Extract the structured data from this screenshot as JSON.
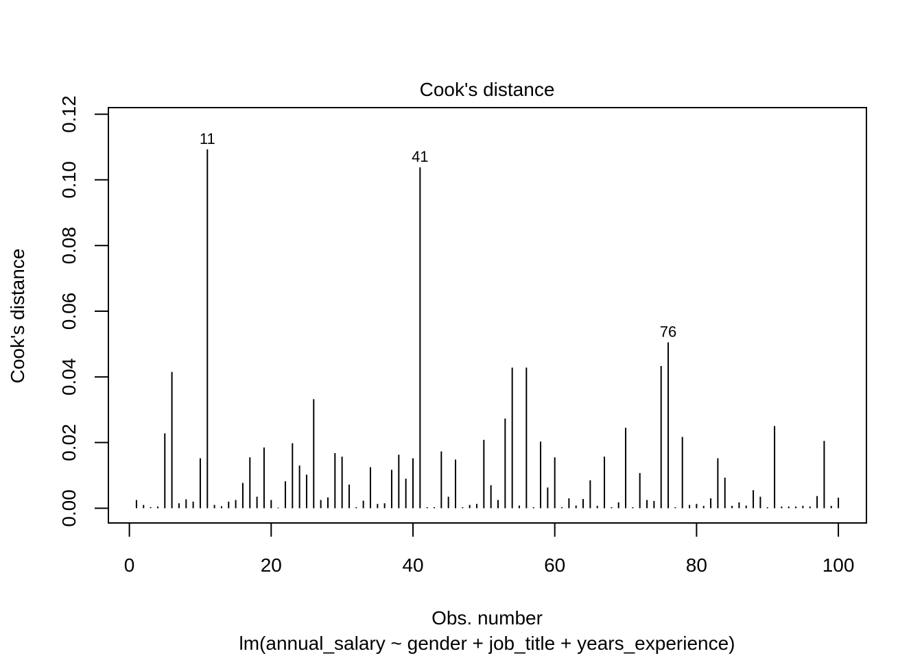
{
  "chart_data": {
    "type": "bar",
    "title": "Cook's distance",
    "xlabel": "Obs. number",
    "subtitle": "lm(annual_salary ~ gender + job_title + years_experience)",
    "ylabel": "Cook's distance",
    "xlim": [
      -2.96,
      103.96
    ],
    "ylim": [
      -0.0045,
      0.122
    ],
    "x_ticks": [
      0,
      20,
      40,
      60,
      80,
      100
    ],
    "y_ticks": [
      0.0,
      0.02,
      0.04,
      0.06,
      0.08,
      0.1,
      0.12
    ],
    "x_tick_labels": [
      "0",
      "20",
      "40",
      "60",
      "80",
      "100"
    ],
    "y_tick_labels": [
      "0.00",
      "0.02",
      "0.04",
      "0.06",
      "0.08",
      "0.10",
      "0.12"
    ],
    "x": [
      1,
      2,
      3,
      4,
      5,
      6,
      7,
      8,
      9,
      10,
      11,
      12,
      13,
      14,
      15,
      16,
      17,
      18,
      19,
      20,
      21,
      22,
      23,
      24,
      25,
      26,
      27,
      28,
      29,
      30,
      31,
      32,
      33,
      34,
      35,
      36,
      37,
      38,
      39,
      40,
      41,
      42,
      43,
      44,
      45,
      46,
      47,
      48,
      49,
      50,
      51,
      52,
      53,
      54,
      55,
      56,
      57,
      58,
      59,
      60,
      61,
      62,
      63,
      64,
      65,
      66,
      67,
      68,
      69,
      70,
      71,
      72,
      73,
      74,
      75,
      76,
      77,
      78,
      79,
      80,
      81,
      82,
      83,
      84,
      85,
      86,
      87,
      88,
      89,
      90,
      91,
      92,
      93,
      94,
      95,
      96,
      97,
      98,
      99,
      100
    ],
    "values": [
      0.0025,
      0.001,
      0.0003,
      0.0005,
      0.0228,
      0.0415,
      0.0015,
      0.0027,
      0.002,
      0.0152,
      0.1093,
      0.001,
      0.0006,
      0.002,
      0.0025,
      0.0077,
      0.0155,
      0.0035,
      0.0185,
      0.0025,
      0.0002,
      0.0082,
      0.0198,
      0.013,
      0.0102,
      0.0332,
      0.0025,
      0.0033,
      0.0168,
      0.0157,
      0.0072,
      0.0003,
      0.0023,
      0.0125,
      0.0013,
      0.0015,
      0.0117,
      0.0163,
      0.009,
      0.0152,
      0.1038,
      0.0003,
      0.0003,
      0.0173,
      0.0035,
      0.0148,
      0.0003,
      0.001,
      0.0013,
      0.0208,
      0.007,
      0.0025,
      0.0273,
      0.0428,
      0.0008,
      0.0428,
      0.0003,
      0.0203,
      0.0063,
      0.0155,
      0.0003,
      0.003,
      0.0008,
      0.0028,
      0.0085,
      0.0007,
      0.0157,
      0.0003,
      0.0018,
      0.0245,
      0.0003,
      0.0107,
      0.0025,
      0.0022,
      0.0433,
      0.0505,
      0.0003,
      0.0217,
      0.001,
      0.0013,
      0.0007,
      0.003,
      0.0152,
      0.0093,
      0.0007,
      0.0018,
      0.0008,
      0.0055,
      0.0035,
      0.0003,
      0.025,
      0.0005,
      0.0005,
      0.0005,
      0.0007,
      0.0005,
      0.0037,
      0.0205,
      0.0007,
      0.0032
    ],
    "labeled_points": [
      {
        "label": "11",
        "x": 11,
        "value": 0.1093
      },
      {
        "label": "41",
        "x": 41,
        "value": 0.1038
      },
      {
        "label": "76",
        "x": 76,
        "value": 0.0505
      }
    ],
    "grid": false,
    "legend": "none"
  }
}
